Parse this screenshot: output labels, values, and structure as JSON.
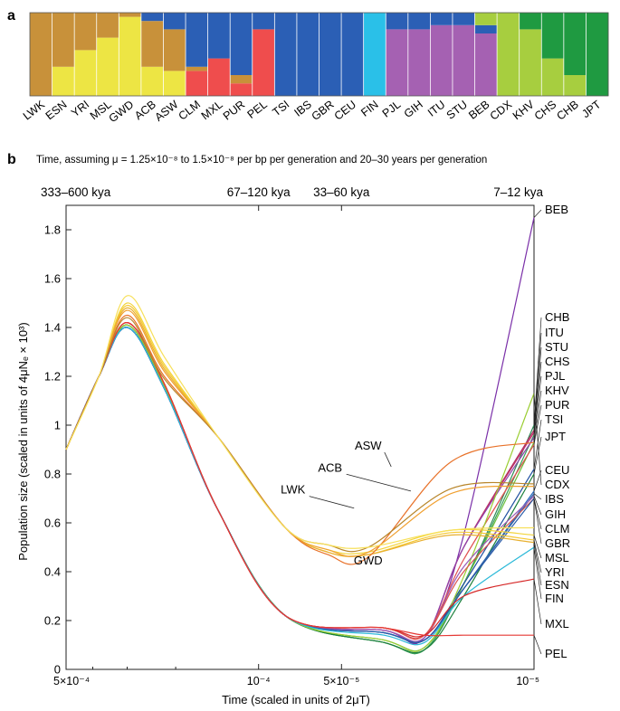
{
  "panel_a": {
    "letter": "a",
    "populations": [
      "LWK",
      "ESN",
      "YRI",
      "MSL",
      "GWD",
      "ACB",
      "ASW",
      "CLM",
      "MXL",
      "PUR",
      "PEL",
      "TSI",
      "IBS",
      "GBR",
      "CEU",
      "FIN",
      "PJL",
      "GIH",
      "ITU",
      "STU",
      "BEB",
      "CDX",
      "KHV",
      "CHS",
      "CHB",
      "JPT"
    ],
    "ancestry_colors": {
      "african": "#c8913a",
      "west_african": "#ede544",
      "european": "#2b5fb5",
      "finnish": "#2ac0e8",
      "native_american": "#ef4d4d",
      "south_asian": "#a561b2",
      "east_asian_south": "#a7ce3f",
      "east_asian_north": "#1f9a41"
    }
  },
  "chart_data": {
    "type": "line",
    "letter": "b",
    "top_axis_title": "Time, assuming μ = 1.25×10⁻⁸ to 1.5×10⁻⁸ per bp per generation and 20–30 years per generation",
    "top_ticks": [
      {
        "x": 0.0005,
        "label": "333–600 kya"
      },
      {
        "x": 0.0001,
        "label": "67–120 kya"
      },
      {
        "x": 5e-05,
        "label": "33–60 kya"
      },
      {
        "x": 1e-05,
        "label": "7–12 kya"
      }
    ],
    "xlabel": "Time (scaled in units of 2μT)",
    "ylabel": "Population size (scaled in units of 4μNₑ × 10³)",
    "x_scale": "log-reversed",
    "xlim": [
      0.0005,
      1e-05
    ],
    "x_ticks": [
      {
        "x": 0.0005,
        "label": "5×10⁻⁴"
      },
      {
        "x": 0.0001,
        "label": "10⁻⁴"
      },
      {
        "x": 5e-05,
        "label": "5×10⁻⁵"
      },
      {
        "x": 1e-05,
        "label": "10⁻⁵"
      }
    ],
    "ylim": [
      0,
      1.9
    ],
    "y_ticks": [
      "0",
      "0.2",
      "0.4",
      "0.6",
      "0.8",
      "1",
      "1.2",
      "1.4",
      "1.6",
      "1.8"
    ],
    "series": [
      {
        "name": "BEB",
        "group": "south_asian",
        "color": "#7a2fa8",
        "peak": 1.4,
        "trough": 0.13,
        "end": 1.85,
        "mid": 0.55
      },
      {
        "name": "CHB",
        "group": "east_asian",
        "color": "#2e8b57",
        "peak": 1.41,
        "trough": 0.08,
        "end": 1.0,
        "mid": 0.35
      },
      {
        "name": "ITU",
        "group": "south_asian",
        "color": "#b03060",
        "peak": 1.4,
        "trough": 0.13,
        "end": 0.98,
        "mid": 0.5
      },
      {
        "name": "STU",
        "group": "south_asian",
        "color": "#c0306a",
        "peak": 1.4,
        "trough": 0.13,
        "end": 0.97,
        "mid": 0.5
      },
      {
        "name": "CHS",
        "group": "east_asian",
        "color": "#3aa05a",
        "peak": 1.41,
        "trough": 0.08,
        "end": 0.96,
        "mid": 0.35
      },
      {
        "name": "PJL",
        "group": "south_asian",
        "color": "#8e44ad",
        "peak": 1.4,
        "trough": 0.13,
        "end": 0.95,
        "mid": 0.5
      },
      {
        "name": "KHV",
        "group": "east_asian",
        "color": "#6bbf3a",
        "peak": 1.41,
        "trough": 0.09,
        "end": 0.93,
        "mid": 0.35
      },
      {
        "name": "PUR",
        "group": "american",
        "color": "#e05050",
        "peak": 1.42,
        "trough": 0.14,
        "end": 0.92,
        "mid": 0.45
      },
      {
        "name": "TSI",
        "group": "european",
        "color": "#1f4fa0",
        "peak": 1.4,
        "trough": 0.12,
        "end": 0.82,
        "mid": 0.35
      },
      {
        "name": "JPT",
        "group": "east_asian",
        "color": "#1a7f3a",
        "peak": 1.41,
        "trough": 0.08,
        "end": 0.8,
        "mid": 0.3
      },
      {
        "name": "CEU",
        "group": "european",
        "color": "#2a6ac0",
        "peak": 1.4,
        "trough": 0.12,
        "end": 0.73,
        "mid": 0.33
      },
      {
        "name": "CDX",
        "group": "east_asian",
        "color": "#9acd32",
        "peak": 1.41,
        "trough": 0.09,
        "end": 1.13,
        "mid": 0.38
      },
      {
        "name": "IBS",
        "group": "european",
        "color": "#3465a4",
        "peak": 1.4,
        "trough": 0.12,
        "end": 0.72,
        "mid": 0.33
      },
      {
        "name": "GIH",
        "group": "south_asian",
        "color": "#9b59b6",
        "peak": 1.4,
        "trough": 0.13,
        "end": 0.71,
        "mid": 0.42
      },
      {
        "name": "CLM",
        "group": "american",
        "color": "#d9534f",
        "peak": 1.42,
        "trough": 0.14,
        "end": 0.7,
        "mid": 0.4
      },
      {
        "name": "GBR",
        "group": "european",
        "color": "#285aa8",
        "peak": 1.4,
        "trough": 0.12,
        "end": 0.7,
        "mid": 0.33
      },
      {
        "name": "MSL",
        "group": "african",
        "color": "#f2d43a",
        "peak": 1.5,
        "trough": 0.48,
        "end": 0.55,
        "mid": 0.57
      },
      {
        "name": "YRI",
        "group": "african",
        "color": "#f5c830",
        "peak": 1.49,
        "trough": 0.47,
        "end": 0.53,
        "mid": 0.56
      },
      {
        "name": "ESN",
        "group": "african",
        "color": "#e8b030",
        "peak": 1.48,
        "trough": 0.47,
        "end": 0.52,
        "mid": 0.55
      },
      {
        "name": "FIN",
        "group": "european",
        "color": "#29b8d8",
        "peak": 1.4,
        "trough": 0.11,
        "end": 0.5,
        "mid": 0.3
      },
      {
        "name": "MXL",
        "group": "american",
        "color": "#d62828",
        "peak": 1.42,
        "trough": 0.14,
        "end": 0.37,
        "mid": 0.3
      },
      {
        "name": "PEL",
        "group": "american",
        "color": "#e53935",
        "peak": 1.42,
        "trough": 0.14,
        "end": 0.14,
        "mid": 0.14
      },
      {
        "name": "ASW",
        "group": "african",
        "color": "#e8722a",
        "peak": 1.45,
        "trough": 0.46,
        "end": 0.93,
        "mid": 0.85
      },
      {
        "name": "ACB",
        "group": "african",
        "color": "#f0a030",
        "peak": 1.47,
        "trough": 0.48,
        "end": 0.75,
        "mid": 0.72
      },
      {
        "name": "LWK",
        "group": "african",
        "color": "#b8862b",
        "peak": 1.44,
        "trough": 0.5,
        "end": 0.76,
        "mid": 0.74
      },
      {
        "name": "GWD",
        "group": "african",
        "color": "#f7e05a",
        "peak": 1.53,
        "trough": 0.5,
        "end": 0.58,
        "mid": 0.57
      }
    ],
    "inline_labels": [
      "ASW",
      "ACB",
      "LWK",
      "GWD"
    ]
  }
}
